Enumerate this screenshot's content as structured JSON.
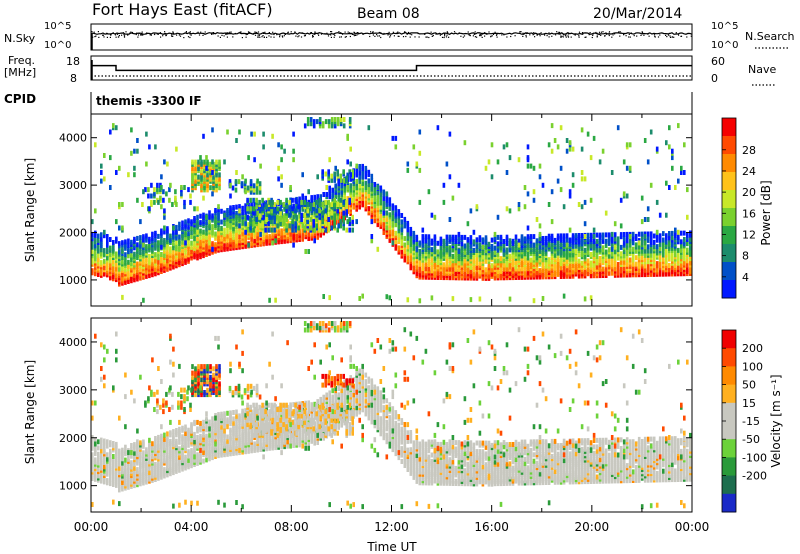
{
  "header": {
    "radar": "Fort Hays East (fitACF)",
    "beam": "Beam 08",
    "date": "20/Mar/2014"
  },
  "chart_data": [
    {
      "type": "line",
      "panel": "noise",
      "left_label": "N.Sky",
      "right_label": "N.Search",
      "left_ticks": [
        "10^5",
        "10^0"
      ],
      "right_ticks": [
        "10^5",
        "10^0"
      ],
      "scale": "log"
    },
    {
      "type": "line",
      "panel": "frequency",
      "left_label_1": "Freq.",
      "left_label_2": "[MHz]",
      "right_label": "Nave",
      "left_ticks": [
        18,
        8
      ],
      "right_ticks": [
        60,
        0
      ],
      "freq_steps": [
        {
          "x": [
            0,
            1
          ],
          "value": 14
        },
        {
          "x": [
            1,
            13
          ],
          "value": 12
        },
        {
          "x": [
            13,
            24
          ],
          "value": 14
        }
      ],
      "nave_level": 10
    },
    {
      "type": "text",
      "panel": "cpid",
      "left_label": "CPID",
      "program": "themis -3300 IF"
    },
    {
      "type": "heatmap",
      "panel": "power",
      "ylabel": "Slant Range [km]",
      "ylim": [
        450,
        4500
      ],
      "yticks": [
        1000,
        2000,
        3000,
        4000
      ],
      "xlim": [
        0,
        24
      ],
      "colorbar": {
        "label": "Power [dB]",
        "ticks": [
          4,
          8,
          12,
          16,
          20,
          24,
          28
        ],
        "colors": [
          "#0018ff",
          "#0050c8",
          "#1c8c6c",
          "#2aa843",
          "#7ad12e",
          "#c8e828",
          "#ffc21a",
          "#ff8a00",
          "#ff4a00",
          "#f50000"
        ]
      }
    },
    {
      "type": "heatmap",
      "panel": "velocity",
      "ylabel": "Slant Range [km]",
      "ylim": [
        450,
        4500
      ],
      "yticks": [
        1000,
        2000,
        3000,
        4000
      ],
      "xlim": [
        0,
        24
      ],
      "colorbar": {
        "label": "Velocity [m s⁻¹]",
        "ticks": [
          200,
          100,
          50,
          15,
          -15,
          -50,
          -100,
          -200
        ],
        "colors": [
          "#1a2ac8",
          "#1d6e4e",
          "#2a9a3a",
          "#6cd23a",
          "#c8c8c0",
          "#c8c8c0",
          "#ffb020",
          "#ff8a00",
          "#ff4a00",
          "#f00000"
        ]
      }
    }
  ],
  "xaxis": {
    "label": "Time UT",
    "ticks": [
      "00:00",
      "04:00",
      "08:00",
      "12:00",
      "16:00",
      "20:00",
      "00:00"
    ]
  }
}
